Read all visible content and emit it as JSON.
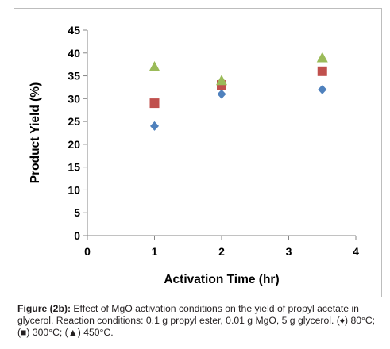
{
  "chart_data": {
    "type": "scatter",
    "xlabel": "Activation Time (hr)",
    "ylabel": "Product Yield (%)",
    "xlim": [
      0,
      4
    ],
    "ylim": [
      0,
      45
    ],
    "x_ticks": [
      "0",
      "1",
      "2",
      "3",
      "4"
    ],
    "y_ticks": [
      "0",
      "5",
      "10",
      "15",
      "20",
      "25",
      "30",
      "35",
      "40",
      "45"
    ],
    "grid": false,
    "legend": "none",
    "series": [
      {
        "marker": "diamond",
        "color": "#4f81bd",
        "points": [
          {
            "x": 1,
            "y": 24
          },
          {
            "x": 2,
            "y": 31
          },
          {
            "x": 3.5,
            "y": 32
          }
        ]
      },
      {
        "marker": "square",
        "color": "#c0504d",
        "points": [
          {
            "x": 1,
            "y": 29
          },
          {
            "x": 2,
            "y": 33
          },
          {
            "x": 3.5,
            "y": 36
          }
        ]
      },
      {
        "marker": "triangle",
        "color": "#9bbb59",
        "points": [
          {
            "x": 1,
            "y": 37
          },
          {
            "x": 2,
            "y": 34
          },
          {
            "x": 3.5,
            "y": 39
          }
        ]
      }
    ]
  },
  "caption": {
    "label": "Figure (2b):",
    "text": "Effect of MgO activation conditions on the yield of propyl acetate in glycerol. Reaction conditions: 0.1 g propyl ester, 0.01 g MgO, 5 g glycerol. (♦) 80°C; (■) 300°C; (▲) 450°C."
  }
}
